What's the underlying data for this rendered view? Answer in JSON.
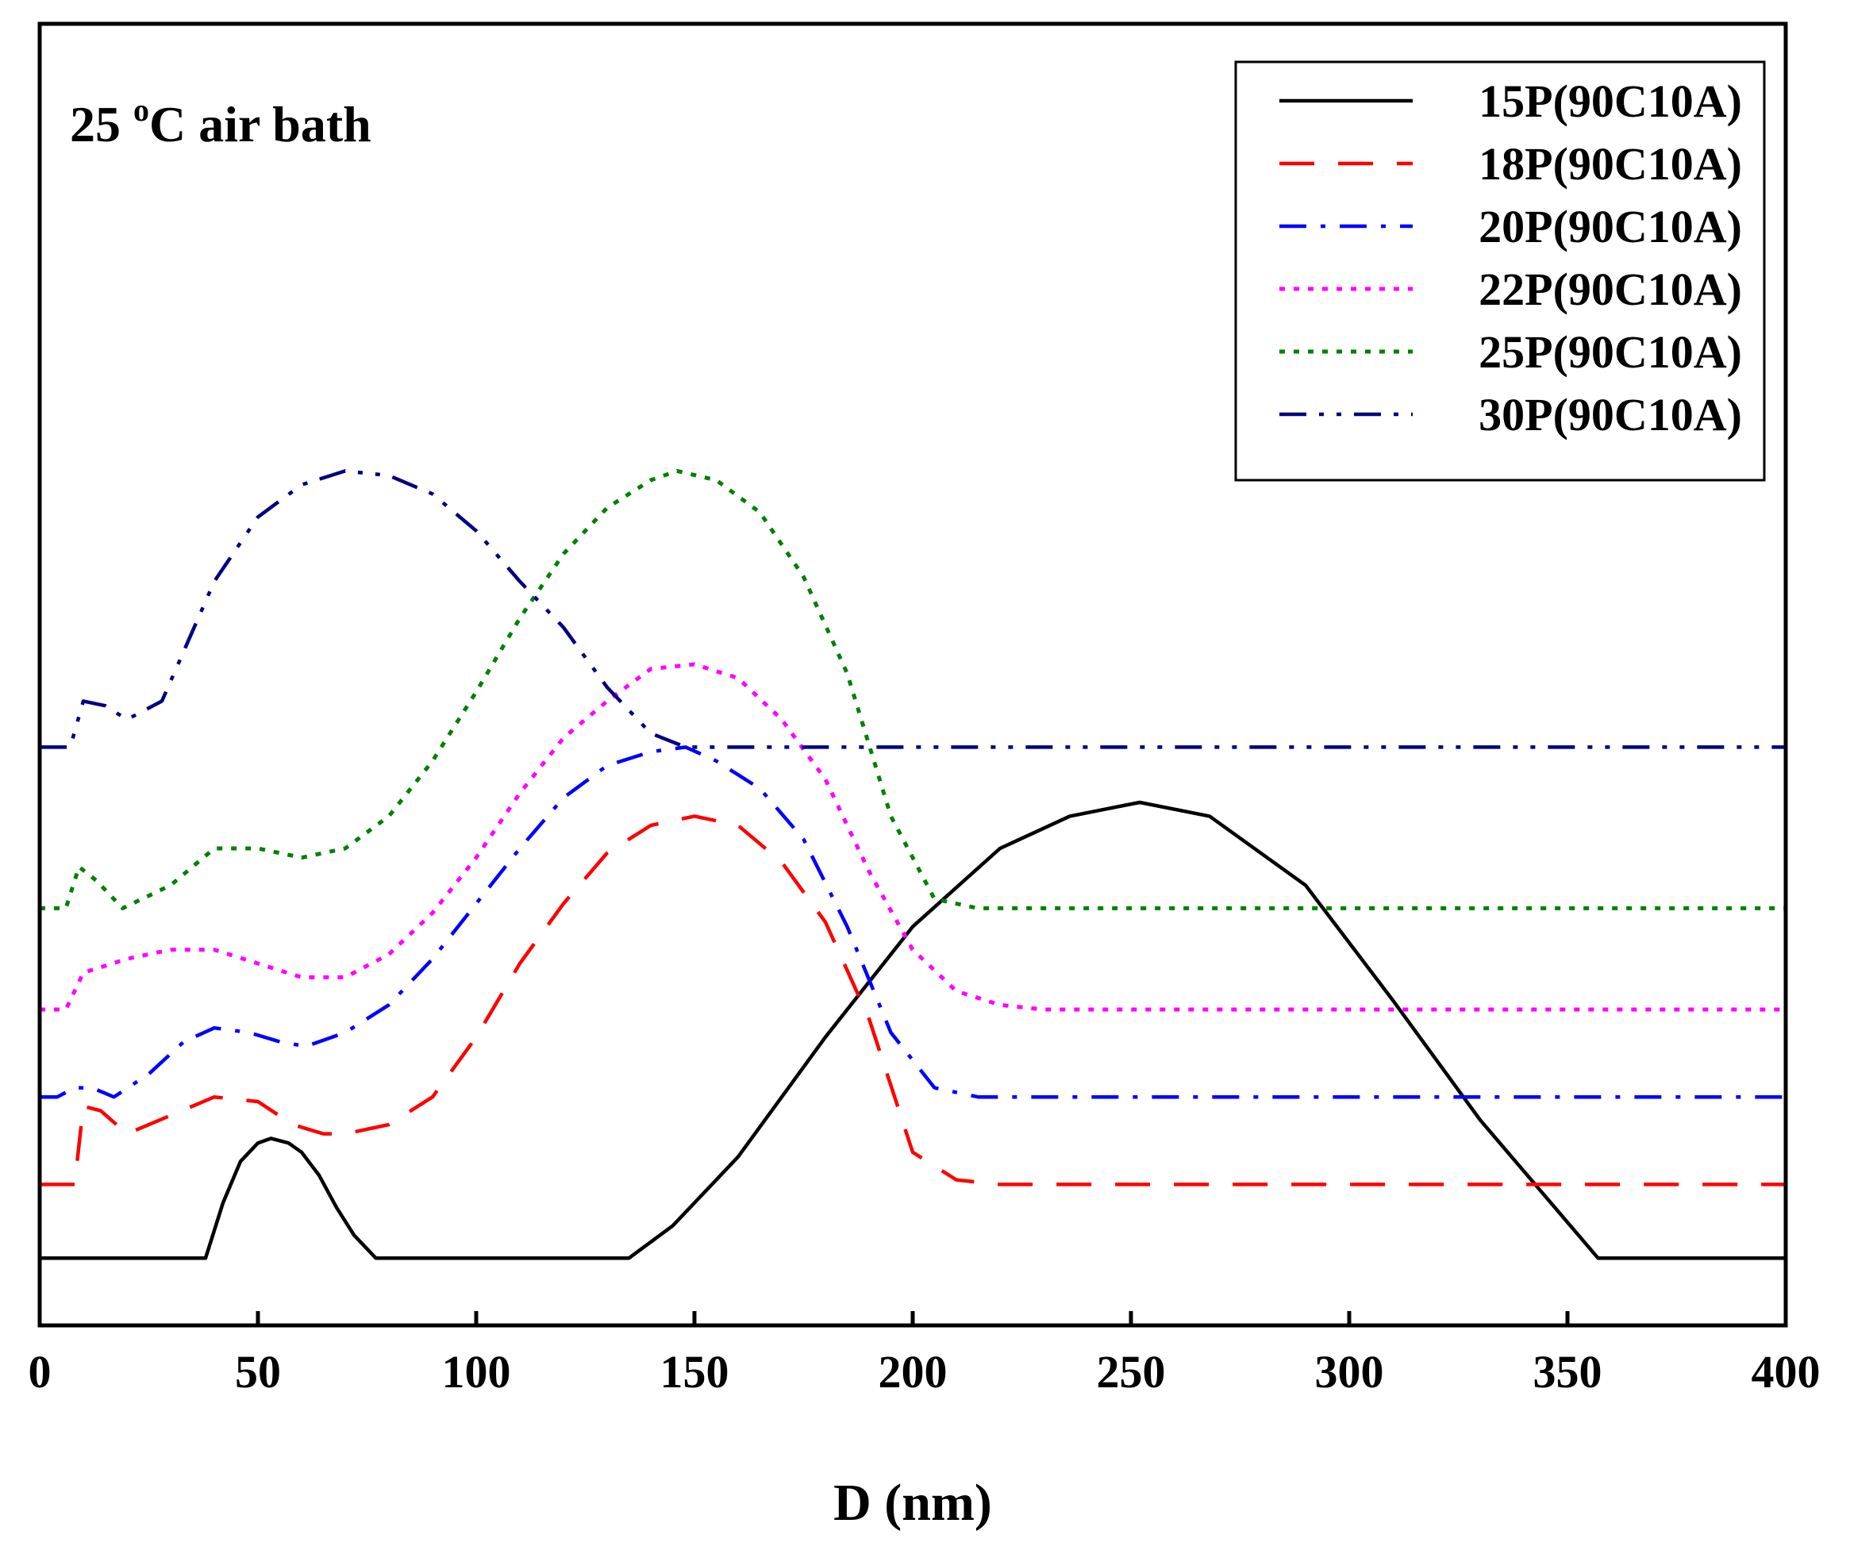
{
  "chart_data": {
    "type": "line",
    "title": "",
    "annotation": {
      "prefix": "25 ",
      "superscript": "o",
      "suffix": "C air bath"
    },
    "xlabel": "D (nm)",
    "ylabel": "",
    "xlim": [
      0,
      400
    ],
    "ylim": [
      0,
      100
    ],
    "xticks": [
      0,
      50,
      100,
      150,
      200,
      250,
      300,
      350,
      400
    ],
    "xtick_labels": [
      "0",
      "50",
      "100",
      "150",
      "200",
      "250",
      "300",
      "350",
      "400"
    ],
    "legend_position": "top-right",
    "series": [
      {
        "name": "15P(90C10A)",
        "color": "#000000",
        "dash": "solid",
        "x": [
          0,
          38,
          42,
          46,
          50,
          53,
          57,
          60,
          64,
          68,
          72,
          77,
          135,
          145,
          160,
          180,
          200,
          220,
          236,
          252,
          268,
          290,
          310,
          330,
          357,
          400
        ],
        "y": [
          3,
          3,
          9,
          13.5,
          15.5,
          16,
          15.5,
          14.5,
          12,
          8.5,
          5.5,
          3,
          3,
          6.5,
          14,
          27,
          39,
          47.5,
          51,
          52.5,
          51,
          43.5,
          31,
          18,
          3,
          3
        ]
      },
      {
        "name": "18P(90C10A)",
        "color": "#ff0000",
        "dash": "dashed",
        "x": [
          0,
          8,
          10,
          14,
          20,
          30,
          40,
          50,
          58,
          65,
          70,
          80,
          90,
          100,
          110,
          120,
          130,
          140,
          150,
          160,
          170,
          180,
          190,
          200,
          210,
          220,
          230,
          400
        ],
        "y": [
          11,
          11,
          19.5,
          19,
          16.5,
          18.5,
          20.5,
          20,
          17.5,
          16.5,
          16.5,
          17.5,
          20.5,
          27,
          35,
          41.5,
          47,
          50,
          51,
          50,
          46,
          39.5,
          29,
          14.5,
          11.5,
          11,
          11,
          11
        ]
      },
      {
        "name": "20P(90C10A)",
        "color": "#0000ff",
        "dash": "dashdot",
        "x": [
          0,
          4,
          8,
          12,
          17,
          25,
          33,
          40,
          48,
          55,
          61,
          70,
          80,
          90,
          100,
          110,
          120,
          130,
          140,
          148,
          155,
          165,
          175,
          185,
          195,
          205,
          215,
          230,
          400
        ],
        "y": [
          20.5,
          20.5,
          21.5,
          21.5,
          20.5,
          23,
          26.5,
          28,
          27.5,
          26.5,
          26,
          27.5,
          30.5,
          35.5,
          41.5,
          47.5,
          53,
          56.5,
          58,
          58.5,
          57,
          54,
          48.5,
          39,
          27.5,
          21.5,
          20.5,
          20.5,
          20.5
        ]
      },
      {
        "name": "22P(90C10A)",
        "color": "#ff00ff",
        "dash": "dotted",
        "x": [
          0,
          6,
          10,
          20,
          30,
          40,
          50,
          60,
          70,
          80,
          90,
          100,
          110,
          120,
          130,
          140,
          150,
          160,
          170,
          180,
          190,
          200,
          210,
          220,
          230,
          400
        ],
        "y": [
          30,
          30,
          34,
          35.5,
          36.5,
          36.5,
          35,
          33.5,
          33.5,
          36,
          40.5,
          46.5,
          53.5,
          59.5,
          63.5,
          67,
          67.5,
          66,
          61.5,
          55,
          45,
          36.5,
          32,
          30.5,
          30,
          30
        ]
      },
      {
        "name": "25P(90C10A)",
        "color": "#008000",
        "dash": "dotted",
        "x": [
          0,
          6,
          9,
          13,
          19,
          30,
          40,
          50,
          60,
          70,
          80,
          90,
          100,
          110,
          120,
          130,
          140,
          146,
          155,
          165,
          175,
          185,
          195,
          205,
          215,
          230,
          400
        ],
        "y": [
          41,
          41,
          45.5,
          44,
          41,
          43.5,
          47.5,
          47.5,
          46.5,
          47.5,
          51,
          57,
          64.5,
          72.5,
          79.5,
          84.5,
          87.5,
          88.5,
          87.5,
          84,
          77,
          66.5,
          51,
          42,
          41,
          41,
          41
        ]
      },
      {
        "name": "30P(90C10A)",
        "color": "#000080",
        "dash": "dashdotdot",
        "x": [
          0,
          7,
          10,
          15,
          20,
          28,
          40,
          50,
          60,
          70,
          80,
          90,
          100,
          110,
          120,
          130,
          140,
          148,
          155,
          165,
          400
        ],
        "y": [
          58.5,
          58.5,
          63.5,
          63,
          61.5,
          63.5,
          76.5,
          83.5,
          87,
          88.5,
          88,
          86,
          82,
          76.5,
          71.5,
          65,
          60,
          58.5,
          58.5,
          58.5,
          58.5
        ]
      }
    ]
  }
}
